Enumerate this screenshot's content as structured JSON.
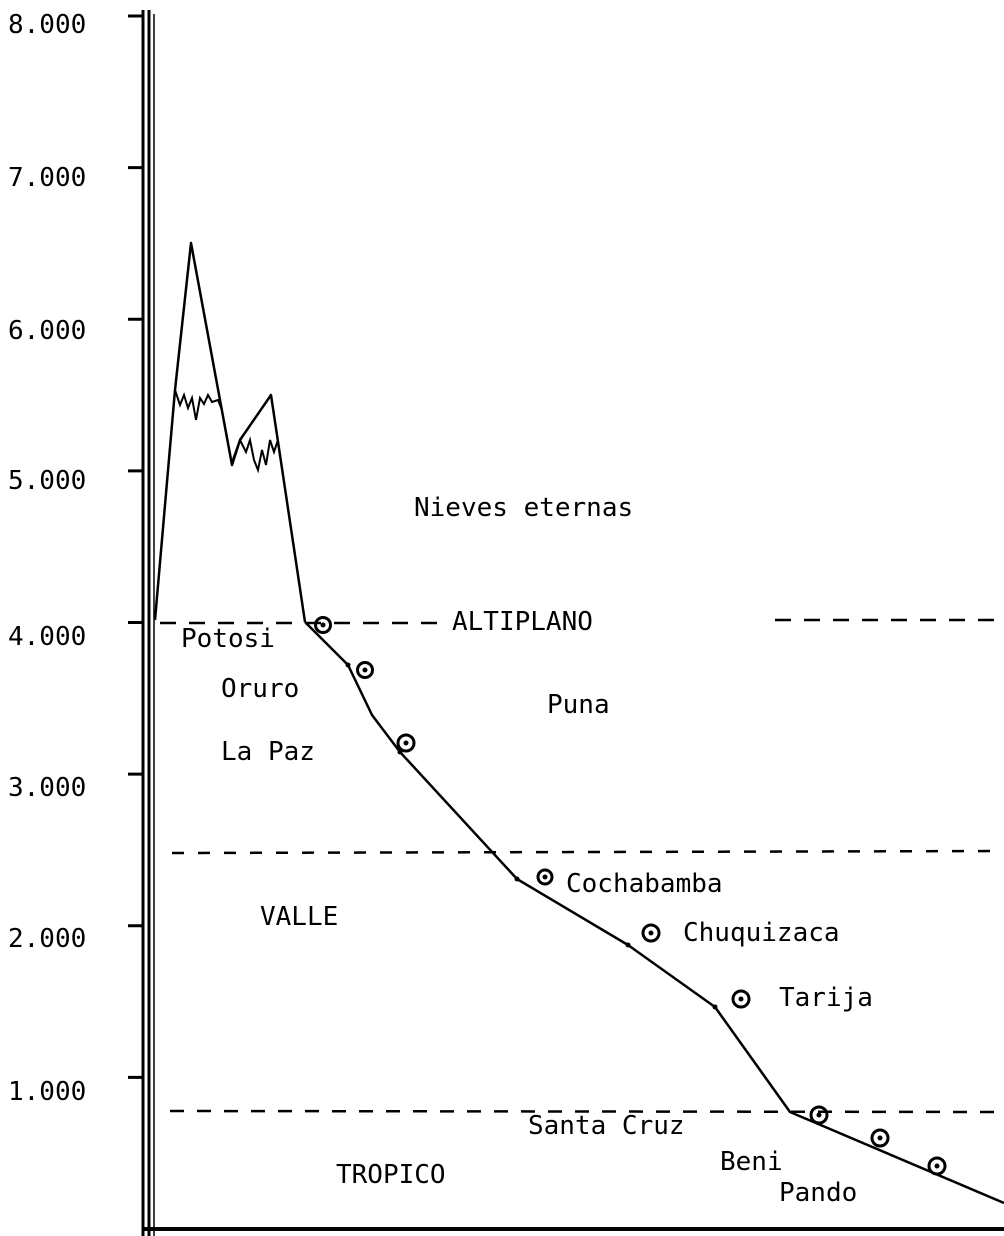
{
  "chart_data": {
    "type": "line",
    "ylim": [
      0,
      8000
    ],
    "y_ticks": [
      {
        "value": 8000,
        "label": "8.000"
      },
      {
        "value": 7000,
        "label": "7.000"
      },
      {
        "value": 6000,
        "label": "6.000"
      },
      {
        "value": 5000,
        "label": "5.000"
      },
      {
        "value": 4000,
        "label": "4.000"
      },
      {
        "value": 3000,
        "label": "3.000"
      },
      {
        "value": 2000,
        "label": "2.000"
      },
      {
        "value": 1000,
        "label": "1.000"
      }
    ],
    "zone_boundaries": [
      4000,
      2500,
      850
    ],
    "zone_labels": {
      "snow": "Nieves eternas",
      "altiplano": "ALTIPLANO",
      "puna": "Puna",
      "valle": "VALLE",
      "tropico": "TROPICO"
    },
    "profile_elevations": [
      4050,
      5550,
      6500,
      5050,
      5500,
      4000,
      3750,
      3150,
      2350,
      1950,
      1500,
      800,
      200
    ],
    "cities": [
      {
        "name": "Potosi",
        "elevation": 4000
      },
      {
        "name": "Oruro",
        "elevation": 3700
      },
      {
        "name": "La Paz",
        "elevation": 3200
      },
      {
        "name": "Cochabamba",
        "elevation": 2350
      },
      {
        "name": "Chuquizaca",
        "elevation": 2000
      },
      {
        "name": "Tarija",
        "elevation": 1550
      },
      {
        "name": "Santa Cruz",
        "elevation": 800
      },
      {
        "name": "Beni",
        "elevation": 600
      },
      {
        "name": "Pando",
        "elevation": 450
      }
    ]
  }
}
